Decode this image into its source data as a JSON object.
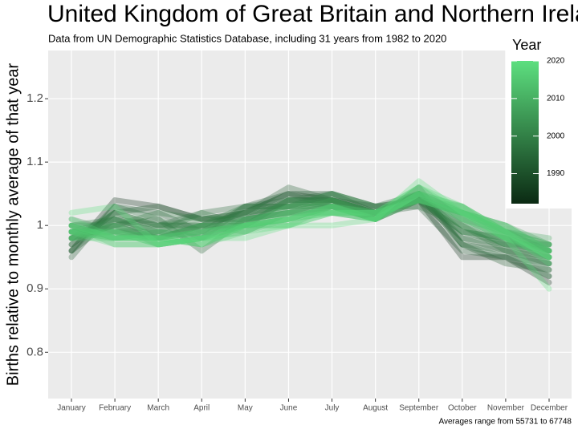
{
  "chart_data": {
    "type": "line",
    "title": "United Kingdom of Great Britain and Northern Ireland",
    "subtitle": "Data from UN Demographic Statistics Database, including 31 years from 1982 to 2020",
    "y_label": "Births relative to monthly average of that year",
    "caption": "Averages range from 55731 to 67748",
    "categories": [
      "January",
      "February",
      "March",
      "April",
      "May",
      "June",
      "July",
      "August",
      "September",
      "October",
      "November",
      "December"
    ],
    "ylim": [
      0.727,
      1.276
    ],
    "yticks": [
      0.8,
      0.9,
      1.0,
      1.1,
      1.2
    ],
    "grid": true,
    "colorbar": {
      "title": "Year",
      "lim": [
        1982,
        2020
      ],
      "ticks": [
        1990,
        2000,
        2010,
        2020
      ],
      "low": "#0b2a13",
      "high": "#5ddf7f"
    },
    "series": [
      {
        "year": 1982,
        "values": [
          0.96,
          1.04,
          1.03,
          1.01,
          1.02,
          1.05,
          1.04,
          1.03,
          1.04,
          0.95,
          0.95,
          0.91
        ]
      },
      {
        "year": 1991,
        "values": [
          0.95,
          1.03,
          1.02,
          0.99,
          1.03,
          1.05,
          1.05,
          1.02,
          1.03,
          0.96,
          0.95,
          0.92
        ]
      },
      {
        "year": 1992,
        "values": [
          0.97,
          1.02,
          1.03,
          1.01,
          1.01,
          1.04,
          1.04,
          1.02,
          1.05,
          0.97,
          0.94,
          0.93
        ]
      },
      {
        "year": 1993,
        "values": [
          0.96,
          1.01,
          1.0,
          1.0,
          1.02,
          1.06,
          1.04,
          1.01,
          1.04,
          0.98,
          0.96,
          0.94
        ]
      },
      {
        "year": 1994,
        "values": [
          0.98,
          1.0,
          1.01,
          0.96,
          1.01,
          1.04,
          1.05,
          1.03,
          1.05,
          0.97,
          0.96,
          0.92
        ]
      },
      {
        "year": 1995,
        "values": [
          0.97,
          1.02,
          1.0,
          1.02,
          1.03,
          1.03,
          1.04,
          1.02,
          1.04,
          0.99,
          0.97,
          0.95
        ]
      },
      {
        "year": 1996,
        "values": [
          0.99,
          1.01,
          0.98,
          1.0,
          1.02,
          1.05,
          1.03,
          1.01,
          1.06,
          0.97,
          0.95,
          0.94
        ]
      },
      {
        "year": 1997,
        "values": [
          0.96,
          1.03,
          1.01,
          0.98,
          1.03,
          1.04,
          1.04,
          1.02,
          1.05,
          0.98,
          0.97,
          0.93
        ]
      },
      {
        "year": 1998,
        "values": [
          0.98,
          1.0,
          1.02,
          1.01,
          1.02,
          1.03,
          1.05,
          1.03,
          1.03,
          1.0,
          0.96,
          0.95
        ]
      },
      {
        "year": 1999,
        "values": [
          1.0,
          1.01,
          0.99,
          1.02,
          1.0,
          1.04,
          1.04,
          1.02,
          1.04,
          0.99,
          0.98,
          0.94
        ]
      },
      {
        "year": 2000,
        "values": [
          0.98,
          1.02,
          1.0,
          1.0,
          1.03,
          1.03,
          1.03,
          1.01,
          1.04,
          1.0,
          0.97,
          0.96
        ]
      },
      {
        "year": 2001,
        "values": [
          0.99,
          0.99,
          1.0,
          1.01,
          1.01,
          1.02,
          1.04,
          1.02,
          1.05,
          0.99,
          0.98,
          0.95
        ]
      },
      {
        "year": 2002,
        "values": [
          1.0,
          1.0,
          0.98,
          0.99,
          1.02,
          1.03,
          1.05,
          1.03,
          1.04,
          1.01,
          0.98,
          0.96
        ]
      },
      {
        "year": 2003,
        "values": [
          0.98,
          1.01,
          0.99,
          1.0,
          1.0,
          1.04,
          1.03,
          1.01,
          1.05,
          1.0,
          0.97,
          0.97
        ]
      },
      {
        "year": 2004,
        "values": [
          1.01,
          0.99,
          0.99,
          0.98,
          1.01,
          1.02,
          1.03,
          1.02,
          1.04,
          1.02,
          0.99,
          0.96
        ]
      },
      {
        "year": 2005,
        "values": [
          0.99,
          1.0,
          0.98,
          1.0,
          1.0,
          1.03,
          1.04,
          1.01,
          1.06,
          1.01,
          0.98,
          0.97
        ]
      },
      {
        "year": 2006,
        "values": [
          1.0,
          0.98,
          0.99,
          0.99,
          1.01,
          1.02,
          1.03,
          1.02,
          1.05,
          1.02,
          0.99,
          0.96
        ]
      },
      {
        "year": 2007,
        "values": [
          0.99,
          0.99,
          0.98,
          1.0,
          0.99,
          1.02,
          1.04,
          1.02,
          1.04,
          1.02,
          1.0,
          0.97
        ]
      },
      {
        "year": 2008,
        "values": [
          0.98,
          1.0,
          0.97,
          0.98,
          1.0,
          1.03,
          1.03,
          1.01,
          1.05,
          1.01,
          0.99,
          0.98
        ]
      },
      {
        "year": 2009,
        "values": [
          0.99,
          0.99,
          0.98,
          0.99,
          1.0,
          1.01,
          1.03,
          1.02,
          1.04,
          1.03,
          0.99,
          0.97
        ]
      },
      {
        "year": 2010,
        "values": [
          1.0,
          0.98,
          0.99,
          0.98,
          1.01,
          1.02,
          1.02,
          1.01,
          1.05,
          1.02,
          1.0,
          0.96
        ]
      },
      {
        "year": 2011,
        "values": [
          0.99,
          0.98,
          0.98,
          0.97,
          1.0,
          1.01,
          1.03,
          1.02,
          1.04,
          1.02,
          0.99,
          0.97
        ]
      },
      {
        "year": 2012,
        "values": [
          0.98,
          0.99,
          0.97,
          0.98,
          0.99,
          1.02,
          1.02,
          1.01,
          1.05,
          1.03,
          0.98,
          0.96
        ]
      },
      {
        "year": 2013,
        "values": [
          0.99,
          0.98,
          0.98,
          0.99,
          1.0,
          1.0,
          1.03,
          1.01,
          1.04,
          1.02,
          0.99,
          0.95
        ]
      },
      {
        "year": 2014,
        "values": [
          1.0,
          0.97,
          0.97,
          0.98,
          1.0,
          1.01,
          1.02,
          1.02,
          1.06,
          1.02,
          0.98,
          0.96
        ]
      },
      {
        "year": 2015,
        "values": [
          0.98,
          0.98,
          0.98,
          0.97,
          0.99,
          1.01,
          1.03,
          1.01,
          1.05,
          1.03,
          0.99,
          0.95
        ]
      },
      {
        "year": 2016,
        "values": [
          0.99,
          0.99,
          0.97,
          0.98,
          1.0,
          1.0,
          1.02,
          1.02,
          1.04,
          1.02,
          1.0,
          0.96
        ]
      },
      {
        "year": 2017,
        "values": [
          1.01,
          0.98,
          0.98,
          0.99,
          1.0,
          1.01,
          1.03,
          1.01,
          1.05,
          1.01,
          0.98,
          0.95
        ]
      },
      {
        "year": 2018,
        "values": [
          0.99,
          0.97,
          0.97,
          0.98,
          0.99,
          1.0,
          1.02,
          1.01,
          1.05,
          1.02,
          0.99,
          0.94
        ]
      },
      {
        "year": 2019,
        "values": [
          1.0,
          0.98,
          0.98,
          0.97,
          1.0,
          1.01,
          1.02,
          1.02,
          1.06,
          1.03,
          0.99,
          0.95
        ]
      },
      {
        "year": 2020,
        "values": [
          1.02,
          1.03,
          0.97,
          0.98,
          0.98,
          1.0,
          1.0,
          1.01,
          1.07,
          1.02,
          0.98,
          0.9
        ]
      }
    ]
  }
}
